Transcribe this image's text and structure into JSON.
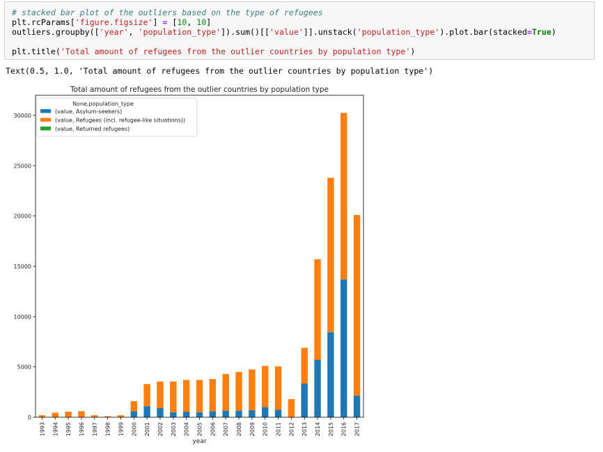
{
  "cell": {
    "code_lines": [
      [
        {
          "t": "# stacked bar plot of the outliers based on the type of refugees",
          "c": "cm"
        }
      ],
      [
        {
          "t": "plt.rcParams[",
          "c": ""
        },
        {
          "t": "'figure.figsize'",
          "c": "str"
        },
        {
          "t": "] ",
          "c": ""
        },
        {
          "t": "=",
          "c": "op"
        },
        {
          "t": " [",
          "c": ""
        },
        {
          "t": "10",
          "c": "num"
        },
        {
          "t": ", ",
          "c": ""
        },
        {
          "t": "10",
          "c": "num"
        },
        {
          "t": "]",
          "c": ""
        }
      ],
      [
        {
          "t": "outliers.groupby([",
          "c": ""
        },
        {
          "t": "'year'",
          "c": "str"
        },
        {
          "t": ", ",
          "c": ""
        },
        {
          "t": "'population_type'",
          "c": "str"
        },
        {
          "t": "]).sum()[[",
          "c": ""
        },
        {
          "t": "'value'",
          "c": "str"
        },
        {
          "t": "]].unstack(",
          "c": ""
        },
        {
          "t": "'population_type'",
          "c": "str"
        },
        {
          "t": ").plot.bar(stacked",
          "c": ""
        },
        {
          "t": "=",
          "c": "op"
        },
        {
          "t": "True",
          "c": "kw"
        },
        {
          "t": ")",
          "c": ""
        }
      ],
      [],
      [
        {
          "t": "plt.title(",
          "c": ""
        },
        {
          "t": "'Total amount of refugees from the outlier countries by population type'",
          "c": "str"
        },
        {
          "t": ")",
          "c": ""
        }
      ]
    ],
    "output_text": "Text(0.5, 1.0, 'Total amount of refugees from the outlier countries by population type')"
  },
  "colors": {
    "asylum": "#1f77b4",
    "refugees": "#ff7f0e",
    "returned": "#2ca02c"
  },
  "chart_data": {
    "type": "bar",
    "stacked": true,
    "title": "Total amount of refugees from the outlier countries by population type",
    "xlabel": "year",
    "ylabel": "",
    "ylim": [
      0,
      32000
    ],
    "yticks": [
      0,
      5000,
      10000,
      15000,
      20000,
      25000,
      30000
    ],
    "categories": [
      "1993",
      "1994",
      "1995",
      "1996",
      "1997",
      "1998",
      "1999",
      "2000",
      "2001",
      "2002",
      "2003",
      "2004",
      "2005",
      "2006",
      "2007",
      "2008",
      "2009",
      "2010",
      "2011",
      "2012",
      "2013",
      "2014",
      "2015",
      "2016",
      "2017"
    ],
    "legend_title": "None,population_type",
    "legend_position": "upper-left",
    "series": [
      {
        "name": "(value, Asylum-seekers)",
        "color": "#1f77b4",
        "values": [
          0,
          0,
          0,
          0,
          0,
          0,
          0,
          600,
          1100,
          900,
          500,
          550,
          500,
          600,
          650,
          650,
          700,
          1000,
          750,
          0,
          3350,
          5700,
          8450,
          13700,
          2150
        ]
      },
      {
        "name": "(value, Refugees (incl. refugee-like situations))",
        "color": "#ff7f0e",
        "values": [
          200,
          450,
          550,
          600,
          200,
          100,
          200,
          1000,
          2200,
          2650,
          3050,
          3150,
          3200,
          3200,
          3650,
          3850,
          4050,
          4100,
          4300,
          1800,
          3550,
          10000,
          15350,
          16550,
          17950
        ]
      },
      {
        "name": "(value, Returned refugees)",
        "color": "#2ca02c",
        "values": [
          0,
          0,
          0,
          0,
          0,
          0,
          0,
          0,
          0,
          0,
          0,
          0,
          0,
          0,
          0,
          0,
          0,
          0,
          0,
          0,
          0,
          0,
          0,
          0,
          0
        ]
      }
    ]
  }
}
